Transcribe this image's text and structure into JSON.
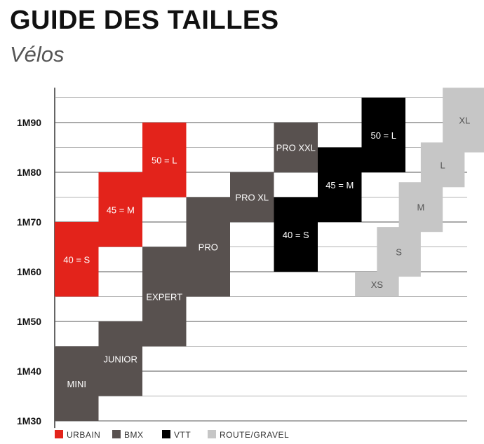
{
  "header": {
    "title": "GUIDE DES TAILLES",
    "subtitle": "Vélos"
  },
  "chart_data": {
    "type": "table",
    "y_ticks": [
      {
        "value": 190,
        "label": "1M90"
      },
      {
        "value": 180,
        "label": "1M80"
      },
      {
        "value": 170,
        "label": "1M70"
      },
      {
        "value": 160,
        "label": "1M60"
      },
      {
        "value": 150,
        "label": "1M50"
      },
      {
        "value": 140,
        "label": "1M40"
      },
      {
        "value": 130,
        "label": "1M30"
      }
    ],
    "ylim": [
      129,
      197
    ],
    "grid": true,
    "legend_placement": "bottom-left",
    "series": [
      {
        "name": "URBAIN",
        "color": "#e3231b",
        "text_color": "#ffffff",
        "blocks": [
          {
            "label": "40 = S",
            "col": 0,
            "span": 1,
            "y0": 155,
            "y1": 170
          },
          {
            "label": "45 = M",
            "col": 1,
            "span": 1,
            "y0": 165,
            "y1": 180
          },
          {
            "label": "50 = L",
            "col": 2,
            "span": 1,
            "y0": 175,
            "y1": 190
          }
        ]
      },
      {
        "name": "BMX",
        "color": "#58514f",
        "text_color": "#ffffff",
        "blocks": [
          {
            "label": "MINI",
            "col": 0,
            "span": 1,
            "y0": 130,
            "y1": 145
          },
          {
            "label": "JUNIOR",
            "col": 1,
            "span": 1,
            "y0": 135,
            "y1": 150
          },
          {
            "label": "EXPERT",
            "col": 2,
            "span": 1,
            "y0": 145,
            "y1": 165
          },
          {
            "label": "PRO",
            "col": 3,
            "span": 1,
            "y0": 155,
            "y1": 175
          },
          {
            "label": "PRO XL",
            "col": 4,
            "span": 1,
            "y0": 170,
            "y1": 180
          },
          {
            "label": "PRO XXL",
            "col": 5,
            "span": 1,
            "y0": 180,
            "y1": 190
          }
        ]
      },
      {
        "name": "VTT",
        "color": "#000000",
        "text_color": "#ffffff",
        "blocks": [
          {
            "label": "40 = S",
            "col": 5,
            "span": 1,
            "y0": 160,
            "y1": 175
          },
          {
            "label": "45 = M",
            "col": 6,
            "span": 1,
            "y0": 170,
            "y1": 185
          },
          {
            "label": "50 = L",
            "col": 7,
            "span": 1,
            "y0": 180,
            "y1": 195
          }
        ]
      },
      {
        "name": "ROUTE/GRAVEL",
        "color": "#c6c6c6",
        "text_color": "#555555",
        "blocks": [
          {
            "label": "XS",
            "col": 6.85,
            "span": 1,
            "y0": 155,
            "y1": 160
          },
          {
            "label": "S",
            "col": 7.35,
            "span": 1,
            "y0": 159,
            "y1": 169
          },
          {
            "label": "M",
            "col": 7.85,
            "span": 1,
            "y0": 168,
            "y1": 178
          },
          {
            "label": "L",
            "col": 8.35,
            "span": 1,
            "y0": 177,
            "y1": 186
          },
          {
            "label": "XL",
            "col": 8.85,
            "span": 1,
            "y0": 184,
            "y1": 197
          }
        ]
      }
    ]
  }
}
